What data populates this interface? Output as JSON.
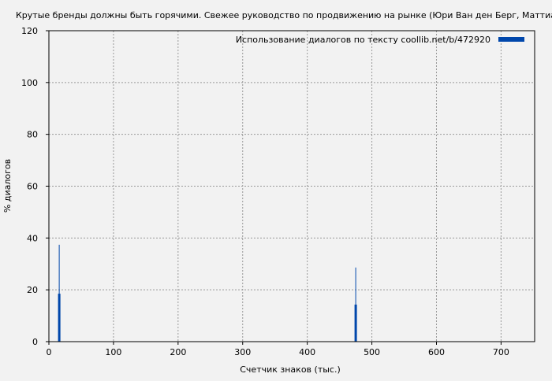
{
  "chart_data": {
    "type": "bar",
    "title": "Крутые бренды должны быть горячими. Свежее руководство по продвижению на рынке (Юри Ван ден Берг, Маттиас Бер",
    "xlabel": "Счетчик знаков (тыс.)",
    "ylabel": "% диалогов",
    "xlim": [
      0,
      752
    ],
    "ylim": [
      0,
      120
    ],
    "xticks": [
      0,
      100,
      200,
      300,
      400,
      500,
      600,
      700
    ],
    "yticks": [
      0,
      20,
      40,
      60,
      80,
      100,
      120
    ],
    "grid": true,
    "legend": {
      "position": "top-right",
      "label": "Использование диалогов по тексту  coollib.net/b/472920"
    },
    "series": [
      {
        "name": "Использование диалогов по тексту  coollib.net/b/472920",
        "color": "#0047ab",
        "points": [
          {
            "x": 16,
            "value": 18.5,
            "peak": 37.4
          },
          {
            "x": 475,
            "value": 14.3,
            "peak": 28.6
          }
        ]
      }
    ]
  }
}
